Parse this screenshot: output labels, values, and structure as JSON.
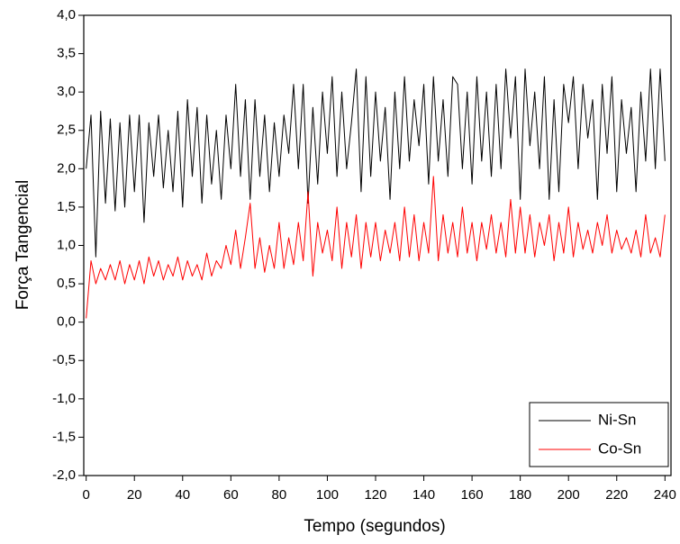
{
  "chart_data": {
    "type": "line",
    "x_label": "Tempo (segundos)",
    "y_label": "Força Tangencial",
    "x": [
      0,
      2,
      4,
      6,
      8,
      10,
      12,
      14,
      16,
      18,
      20,
      22,
      24,
      26,
      28,
      30,
      32,
      34,
      36,
      38,
      40,
      42,
      44,
      46,
      48,
      50,
      52,
      54,
      56,
      58,
      60,
      62,
      64,
      66,
      68,
      70,
      72,
      74,
      76,
      78,
      80,
      82,
      84,
      86,
      88,
      90,
      92,
      94,
      96,
      98,
      100,
      102,
      104,
      106,
      108,
      110,
      112,
      114,
      116,
      118,
      120,
      122,
      124,
      126,
      128,
      130,
      132,
      134,
      136,
      138,
      140,
      142,
      144,
      146,
      148,
      150,
      152,
      154,
      156,
      158,
      160,
      162,
      164,
      166,
      168,
      170,
      172,
      174,
      176,
      178,
      180,
      182,
      184,
      186,
      188,
      190,
      192,
      194,
      196,
      198,
      200,
      202,
      204,
      206,
      208,
      210,
      212,
      214,
      216,
      218,
      220,
      222,
      224,
      226,
      228,
      230,
      232,
      234,
      236,
      238,
      240
    ],
    "series": [
      {
        "name": "Ni-Sn",
        "color": "#000000",
        "values": [
          2.0,
          2.7,
          0.85,
          2.75,
          1.55,
          2.65,
          1.45,
          2.6,
          1.5,
          2.7,
          1.7,
          2.7,
          1.3,
          2.6,
          1.9,
          2.7,
          1.75,
          2.5,
          1.7,
          2.75,
          1.5,
          2.9,
          1.9,
          2.8,
          1.55,
          2.7,
          1.8,
          2.5,
          1.6,
          2.7,
          2.0,
          3.1,
          1.9,
          2.9,
          1.6,
          2.9,
          1.9,
          2.7,
          1.7,
          2.6,
          1.9,
          2.7,
          2.2,
          3.1,
          2.0,
          3.1,
          1.55,
          2.8,
          1.8,
          3.0,
          2.2,
          3.2,
          1.9,
          3.0,
          2.0,
          2.6,
          3.3,
          1.7,
          3.2,
          1.9,
          3.0,
          2.1,
          2.8,
          1.6,
          3.0,
          2.0,
          3.2,
          2.1,
          2.9,
          2.3,
          3.1,
          1.8,
          3.2,
          2.1,
          2.9,
          1.9,
          3.2,
          3.1,
          2.0,
          3.0,
          1.8,
          3.2,
          2.1,
          3.0,
          1.9,
          3.1,
          2.0,
          3.3,
          2.4,
          3.2,
          1.6,
          3.3,
          2.3,
          3.0,
          2.0,
          3.2,
          1.6,
          2.9,
          1.7,
          3.1,
          2.6,
          3.2,
          2.0,
          3.1,
          2.4,
          2.9,
          1.6,
          3.1,
          2.2,
          3.2,
          1.7,
          2.9,
          2.2,
          2.8,
          1.7,
          3.0,
          2.1,
          3.3,
          2.0,
          3.3,
          2.1
        ]
      },
      {
        "name": "Co-Sn",
        "color": "#ff0000",
        "values": [
          0.05,
          0.8,
          0.5,
          0.7,
          0.55,
          0.75,
          0.55,
          0.8,
          0.5,
          0.75,
          0.55,
          0.8,
          0.5,
          0.85,
          0.6,
          0.8,
          0.55,
          0.75,
          0.6,
          0.85,
          0.55,
          0.8,
          0.6,
          0.75,
          0.55,
          0.9,
          0.6,
          0.8,
          0.7,
          1.0,
          0.75,
          1.2,
          0.7,
          1.1,
          1.55,
          0.7,
          1.1,
          0.65,
          1.0,
          0.7,
          1.3,
          0.7,
          1.1,
          0.75,
          1.3,
          0.8,
          1.7,
          0.6,
          1.3,
          0.9,
          1.2,
          0.8,
          1.5,
          0.7,
          1.3,
          0.85,
          1.4,
          0.7,
          1.3,
          0.85,
          1.3,
          0.8,
          1.2,
          0.9,
          1.3,
          0.8,
          1.5,
          0.85,
          1.4,
          0.8,
          1.3,
          0.9,
          1.9,
          0.8,
          1.4,
          0.9,
          1.3,
          0.85,
          1.5,
          0.9,
          1.3,
          0.8,
          1.3,
          0.95,
          1.4,
          0.9,
          1.3,
          0.85,
          1.6,
          0.9,
          1.5,
          0.9,
          1.4,
          0.85,
          1.3,
          1.0,
          1.4,
          0.8,
          1.3,
          0.9,
          1.5,
          0.85,
          1.3,
          0.95,
          1.2,
          0.9,
          1.3,
          1.0,
          1.4,
          0.9,
          1.2,
          0.95,
          1.1,
          0.9,
          1.2,
          0.85,
          1.4,
          0.9,
          1.1,
          0.85,
          1.4
        ]
      }
    ],
    "xlim": [
      -1,
      242.5
    ],
    "xticks": [
      0,
      20,
      40,
      60,
      80,
      100,
      120,
      140,
      160,
      180,
      200,
      220,
      240
    ],
    "ylim": [
      -2,
      4
    ],
    "yticks": [
      {
        "value": -2,
        "label": "-2,0"
      },
      {
        "value": -1.5,
        "label": "-1,5"
      },
      {
        "value": -1,
        "label": "-1,0"
      },
      {
        "value": -0.5,
        "label": "-0,5"
      },
      {
        "value": 0,
        "label": "0,0"
      },
      {
        "value": 0.5,
        "label": "0,5"
      },
      {
        "value": 1,
        "label": "1,0"
      },
      {
        "value": 1.5,
        "label": "1,5"
      },
      {
        "value": 2,
        "label": "2,0"
      },
      {
        "value": 2.5,
        "label": "2,5"
      },
      {
        "value": 3,
        "label": "3,0"
      },
      {
        "value": 3.5,
        "label": "3,5"
      },
      {
        "value": 4,
        "label": "4,0"
      }
    ],
    "grid": false,
    "legend": "lower right"
  }
}
